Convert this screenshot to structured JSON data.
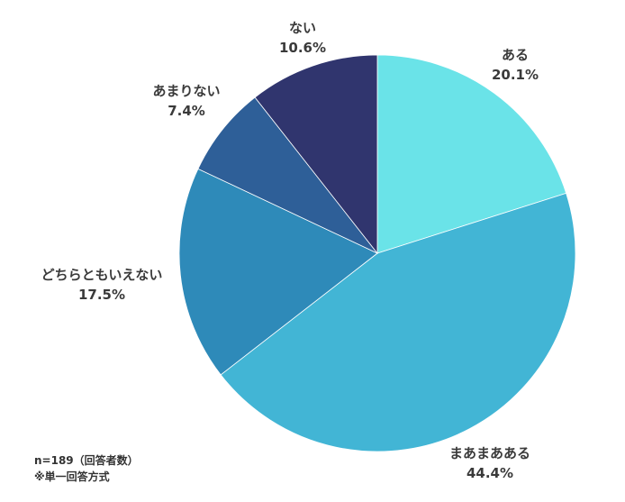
{
  "chart_data": {
    "type": "pie",
    "start": "top",
    "direction": "clockwise",
    "slices": [
      {
        "label": "ある",
        "value": 20.1,
        "display": "20.1%",
        "color": "#6AE3E8"
      },
      {
        "label": "まあまあある",
        "value": 44.4,
        "display": "44.4%",
        "color": "#42B5D5"
      },
      {
        "label": "どちらともいえない",
        "value": 17.5,
        "display": "17.5%",
        "color": "#2E8AB9"
      },
      {
        "label": "あまりない",
        "value": 7.4,
        "display": "7.4%",
        "color": "#2E5F98"
      },
      {
        "label": "ない",
        "value": 10.6,
        "display": "10.6%",
        "color": "#30356E"
      }
    ]
  },
  "notes": {
    "sample": "n=189（回答者数）",
    "method": "※単一回答方式"
  }
}
